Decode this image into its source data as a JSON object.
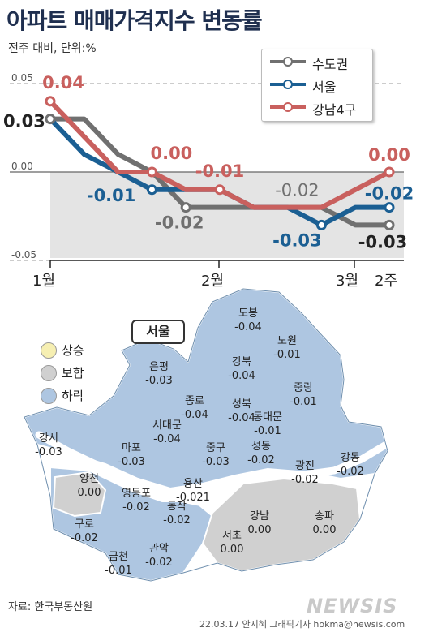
{
  "header": {
    "title": "아파트 매매가격지수 변동률",
    "unit": "전주 대비, 단위:%"
  },
  "chart_data": {
    "type": "line",
    "x_labels": [
      "1월",
      "2월",
      "3월",
      "2주"
    ],
    "ylim": [
      -0.05,
      0.05
    ],
    "y_tick_labels": [
      "0.05",
      "0.00",
      "-0.05"
    ],
    "series": [
      {
        "name": "수도권",
        "color": "#707070",
        "values": [
          0.03,
          0.03,
          0.01,
          0.0,
          -0.02,
          -0.02,
          -0.02,
          -0.02,
          -0.02,
          -0.03,
          -0.03
        ],
        "labels": [
          {
            "index": 0,
            "text": "0.03"
          },
          {
            "index": 4,
            "text": "-0.02"
          },
          {
            "index": 10,
            "text": "-0.03"
          }
        ]
      },
      {
        "name": "서울",
        "color": "#1b5f93",
        "values": [
          0.03,
          0.01,
          0.0,
          -0.01,
          -0.01,
          -0.01,
          -0.02,
          -0.02,
          -0.03,
          -0.02,
          -0.02
        ],
        "labels": [
          {
            "index": 3,
            "text": "-0.01"
          },
          {
            "index": 8,
            "text": "-0.03"
          },
          {
            "index": 10,
            "text": "-0.02"
          }
        ]
      },
      {
        "name": "강남4구",
        "color": "#c9605e",
        "values": [
          0.04,
          0.02,
          0.0,
          0.0,
          -0.01,
          -0.01,
          -0.02,
          -0.02,
          -0.02,
          -0.01,
          0.0
        ],
        "labels": [
          {
            "index": 0,
            "text": "0.04"
          },
          {
            "index": 3,
            "text": "0.00"
          },
          {
            "index": 5,
            "text": "-0.01"
          },
          {
            "index": 10,
            "text": "0.00"
          }
        ]
      }
    ],
    "extra_labels": [
      {
        "index": 8,
        "text": "-0.02"
      }
    ],
    "legend": "top-right",
    "grid": false
  },
  "map": {
    "title": "서울",
    "legend": [
      {
        "label": "상승",
        "color": "#f6efb2"
      },
      {
        "label": "보합",
        "color": "#d0d0d0"
      },
      {
        "label": "하락",
        "color": "#aec6e1"
      }
    ],
    "districts": [
      {
        "name": "도봉",
        "value": "-0.04"
      },
      {
        "name": "노원",
        "value": "-0.01"
      },
      {
        "name": "강북",
        "value": "-0.04"
      },
      {
        "name": "은평",
        "value": "-0.03"
      },
      {
        "name": "성북",
        "value": "-0.04"
      },
      {
        "name": "중랑",
        "value": "-0.01"
      },
      {
        "name": "종로",
        "value": "-0.04"
      },
      {
        "name": "동대문",
        "value": "-0.01"
      },
      {
        "name": "서대문",
        "value": "-0.04"
      },
      {
        "name": "강서",
        "value": "-0.03"
      },
      {
        "name": "마포",
        "value": "-0.03"
      },
      {
        "name": "중구",
        "value": "-0.03"
      },
      {
        "name": "성동",
        "value": "-0.02"
      },
      {
        "name": "광진",
        "value": "-0.02"
      },
      {
        "name": "강동",
        "value": "-0.02"
      },
      {
        "name": "양천",
        "value": "0.00"
      },
      {
        "name": "용산",
        "value": "-0.021"
      },
      {
        "name": "영등포",
        "value": "-0.02"
      },
      {
        "name": "동작",
        "value": "-0.02"
      },
      {
        "name": "구로",
        "value": "-0.02"
      },
      {
        "name": "강남",
        "value": "0.00"
      },
      {
        "name": "송파",
        "value": "0.00"
      },
      {
        "name": "서초",
        "value": "0.00"
      },
      {
        "name": "관악",
        "value": "-0.02"
      },
      {
        "name": "금천",
        "value": "-0.01"
      }
    ]
  },
  "footer": {
    "source": "자료: 한국부동산원",
    "credit": "22.03.17 안지혜 그래픽기자 hokma@newsis.com",
    "logo": "NEWSIS"
  }
}
